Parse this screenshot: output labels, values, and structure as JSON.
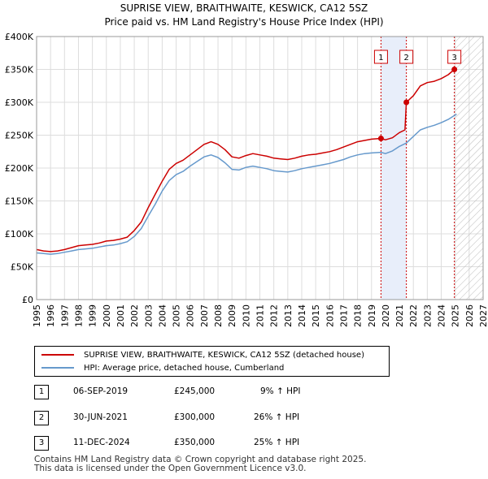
{
  "chart_data": {
    "type": "line",
    "title": "SUPRISE VIEW, BRAITHWAITE, KESWICK, CA12 5SZ",
    "subtitle": "Price paid vs. HM Land Registry's House Price Index (HPI)",
    "xlim": [
      1995,
      2027
    ],
    "ylim": [
      0,
      400000
    ],
    "x_ticks": [
      "1995",
      "1996",
      "1997",
      "1998",
      "1999",
      "2000",
      "2001",
      "2002",
      "2003",
      "2004",
      "2005",
      "2006",
      "2007",
      "2008",
      "2009",
      "2010",
      "2011",
      "2012",
      "2013",
      "2014",
      "2015",
      "2016",
      "2017",
      "2018",
      "2019",
      "2020",
      "2021",
      "2022",
      "2023",
      "2024",
      "2025",
      "2026",
      "2027"
    ],
    "y_ticks": [
      {
        "value": 0,
        "label": "£0"
      },
      {
        "value": 50000,
        "label": "£50K"
      },
      {
        "value": 100000,
        "label": "£100K"
      },
      {
        "value": 150000,
        "label": "£150K"
      },
      {
        "value": 200000,
        "label": "£200K"
      },
      {
        "value": 250000,
        "label": "£250K"
      },
      {
        "value": 300000,
        "label": "£300K"
      },
      {
        "value": 350000,
        "label": "£350K"
      },
      {
        "value": 400000,
        "label": "£400K"
      }
    ],
    "series": [
      {
        "name": "SUPRISE VIEW, BRAITHWAITE, KESWICK, CA12 5SZ (detached house)",
        "color": "#cc0000",
        "points": [
          [
            1995.0,
            76000
          ],
          [
            1995.5,
            74000
          ],
          [
            1996.0,
            73000
          ],
          [
            1996.5,
            74000
          ],
          [
            1997.0,
            76000
          ],
          [
            1997.5,
            79000
          ],
          [
            1998.0,
            82000
          ],
          [
            1998.5,
            83000
          ],
          [
            1999.0,
            84000
          ],
          [
            1999.5,
            86000
          ],
          [
            2000.0,
            89000
          ],
          [
            2000.5,
            90000
          ],
          [
            2001.0,
            92000
          ],
          [
            2001.5,
            95000
          ],
          [
            2002.0,
            105000
          ],
          [
            2002.5,
            118000
          ],
          [
            2003.0,
            140000
          ],
          [
            2003.5,
            160000
          ],
          [
            2004.0,
            180000
          ],
          [
            2004.5,
            198000
          ],
          [
            2005.0,
            207000
          ],
          [
            2005.5,
            212000
          ],
          [
            2006.0,
            220000
          ],
          [
            2006.5,
            228000
          ],
          [
            2007.0,
            236000
          ],
          [
            2007.5,
            240000
          ],
          [
            2008.0,
            236000
          ],
          [
            2008.5,
            228000
          ],
          [
            2009.0,
            217000
          ],
          [
            2009.5,
            215000
          ],
          [
            2010.0,
            219000
          ],
          [
            2010.5,
            222000
          ],
          [
            2011.0,
            220000
          ],
          [
            2011.5,
            218000
          ],
          [
            2012.0,
            215000
          ],
          [
            2012.5,
            214000
          ],
          [
            2013.0,
            213000
          ],
          [
            2013.5,
            215000
          ],
          [
            2014.0,
            218000
          ],
          [
            2014.5,
            220000
          ],
          [
            2015.0,
            221000
          ],
          [
            2015.5,
            223000
          ],
          [
            2016.0,
            225000
          ],
          [
            2016.5,
            228000
          ],
          [
            2017.0,
            232000
          ],
          [
            2017.5,
            236000
          ],
          [
            2018.0,
            240000
          ],
          [
            2018.5,
            242000
          ],
          [
            2019.0,
            244000
          ],
          [
            2019.68,
            245000
          ],
          [
            2020.0,
            243000
          ],
          [
            2020.5,
            246000
          ],
          [
            2021.0,
            254000
          ],
          [
            2021.4,
            258000
          ],
          [
            2021.5,
            300000
          ],
          [
            2022.0,
            310000
          ],
          [
            2022.5,
            325000
          ],
          [
            2023.0,
            330000
          ],
          [
            2023.5,
            332000
          ],
          [
            2024.0,
            336000
          ],
          [
            2024.5,
            342000
          ],
          [
            2024.94,
            350000
          ],
          [
            2025.1,
            352000
          ]
        ]
      },
      {
        "name": "HPI: Average price, detached house, Cumberland",
        "color": "#6699cc",
        "points": [
          [
            1995.0,
            71000
          ],
          [
            1995.5,
            70000
          ],
          [
            1996.0,
            69000
          ],
          [
            1996.5,
            70000
          ],
          [
            1997.0,
            72000
          ],
          [
            1997.5,
            74000
          ],
          [
            1998.0,
            76000
          ],
          [
            1998.5,
            77000
          ],
          [
            1999.0,
            78000
          ],
          [
            1999.5,
            80000
          ],
          [
            2000.0,
            82000
          ],
          [
            2000.5,
            83000
          ],
          [
            2001.0,
            85000
          ],
          [
            2001.5,
            88000
          ],
          [
            2002.0,
            96000
          ],
          [
            2002.5,
            108000
          ],
          [
            2003.0,
            127000
          ],
          [
            2003.5,
            145000
          ],
          [
            2004.0,
            165000
          ],
          [
            2004.5,
            181000
          ],
          [
            2005.0,
            190000
          ],
          [
            2005.5,
            195000
          ],
          [
            2006.0,
            203000
          ],
          [
            2006.5,
            210000
          ],
          [
            2007.0,
            217000
          ],
          [
            2007.5,
            220000
          ],
          [
            2008.0,
            216000
          ],
          [
            2008.5,
            208000
          ],
          [
            2009.0,
            198000
          ],
          [
            2009.5,
            197000
          ],
          [
            2010.0,
            201000
          ],
          [
            2010.5,
            203000
          ],
          [
            2011.0,
            201000
          ],
          [
            2011.5,
            199000
          ],
          [
            2012.0,
            196000
          ],
          [
            2012.5,
            195000
          ],
          [
            2013.0,
            194000
          ],
          [
            2013.5,
            196000
          ],
          [
            2014.0,
            199000
          ],
          [
            2014.5,
            201000
          ],
          [
            2015.0,
            203000
          ],
          [
            2015.5,
            205000
          ],
          [
            2016.0,
            207000
          ],
          [
            2016.5,
            210000
          ],
          [
            2017.0,
            213000
          ],
          [
            2017.5,
            217000
          ],
          [
            2018.0,
            220000
          ],
          [
            2018.5,
            222000
          ],
          [
            2019.0,
            223000
          ],
          [
            2019.68,
            224000
          ],
          [
            2020.0,
            222000
          ],
          [
            2020.5,
            226000
          ],
          [
            2021.0,
            233000
          ],
          [
            2021.5,
            238000
          ],
          [
            2022.0,
            248000
          ],
          [
            2022.5,
            258000
          ],
          [
            2023.0,
            262000
          ],
          [
            2023.5,
            265000
          ],
          [
            2024.0,
            269000
          ],
          [
            2024.5,
            274000
          ],
          [
            2024.94,
            280000
          ],
          [
            2025.1,
            282000
          ]
        ]
      }
    ],
    "sales": [
      {
        "label": "1",
        "x": 2019.68,
        "value": 245000
      },
      {
        "label": "2",
        "x": 2021.5,
        "value": 300000
      },
      {
        "label": "3",
        "x": 2024.94,
        "value": 350000
      }
    ],
    "shaded_ranges": [
      {
        "from": 2019.68,
        "to": 2021.5,
        "kind": "between-sales"
      },
      {
        "from": 2025.0,
        "to": 2027.0,
        "kind": "future-hatched"
      }
    ]
  },
  "legend": {
    "items": [
      {
        "label": "SUPRISE VIEW, BRAITHWAITE, KESWICK, CA12 5SZ (detached house)",
        "color": "#cc0000"
      },
      {
        "label": "HPI: Average price, detached house, Cumberland",
        "color": "#6699cc"
      }
    ]
  },
  "sales_table": [
    {
      "num": "1",
      "date": "06-SEP-2019",
      "price": "£245,000",
      "hpi": "9% ↑ HPI"
    },
    {
      "num": "2",
      "date": "30-JUN-2021",
      "price": "£300,000",
      "hpi": "26% ↑ HPI"
    },
    {
      "num": "3",
      "date": "11-DEC-2024",
      "price": "£350,000",
      "hpi": "25% ↑ HPI"
    }
  ],
  "footer": {
    "line1": "Contains HM Land Registry data © Crown copyright and database right 2025.",
    "line2": "This data is licensed under the Open Government Licence v3.0."
  }
}
